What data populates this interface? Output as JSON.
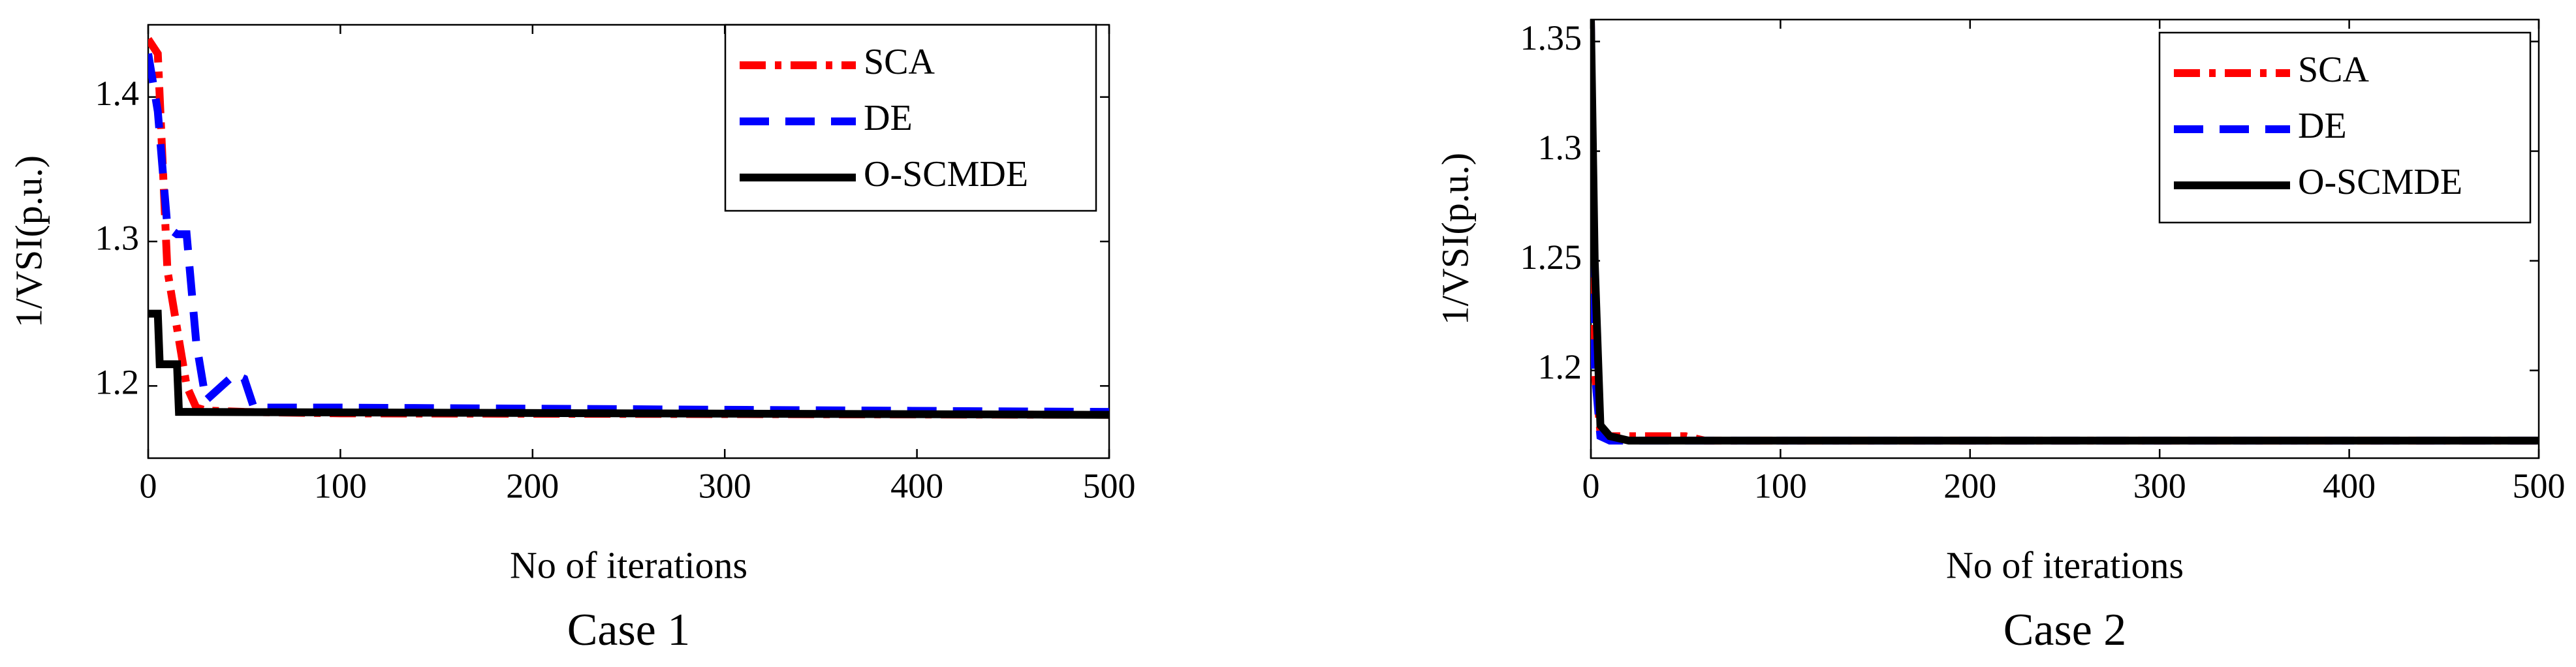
{
  "chart_data": [
    {
      "type": "line",
      "title": "Case 1",
      "xlabel": "No of iterations",
      "ylabel": "1/VSI(p.u.)",
      "xlim": [
        0,
        500
      ],
      "xticks": [
        0,
        100,
        200,
        300,
        400,
        500
      ],
      "ylim": [
        1.15,
        1.45
      ],
      "yticks": [
        1.2,
        1.3,
        1.4
      ],
      "legend": "upper right",
      "series": [
        {
          "name": "SCA",
          "color": "#ff0000",
          "style": "dashdot",
          "x": [
            0,
            5,
            10,
            15,
            20,
            25,
            30,
            50,
            100,
            500
          ],
          "values": [
            1.44,
            1.43,
            1.28,
            1.24,
            1.2,
            1.185,
            1.183,
            1.182,
            1.181,
            1.18
          ]
        },
        {
          "name": "DE",
          "color": "#0000ff",
          "style": "dashed",
          "x": [
            0,
            5,
            10,
            15,
            20,
            25,
            30,
            45,
            50,
            55,
            100,
            500
          ],
          "values": [
            1.43,
            1.39,
            1.31,
            1.305,
            1.305,
            1.23,
            1.19,
            1.208,
            1.205,
            1.185,
            1.185,
            1.182
          ]
        },
        {
          "name": "O-SCMDE",
          "color": "#000000",
          "style": "solid",
          "x": [
            0,
            5,
            6,
            15,
            16,
            20,
            500
          ],
          "values": [
            1.25,
            1.25,
            1.215,
            1.215,
            1.182,
            1.182,
            1.18
          ]
        }
      ]
    },
    {
      "type": "line",
      "title": "Case 2",
      "xlabel": "No of iterations",
      "ylabel": "1/VSI(p.u.)",
      "xlim": [
        0,
        500
      ],
      "xticks": [
        0,
        100,
        200,
        300,
        400,
        500
      ],
      "ylim": [
        1.16,
        1.36
      ],
      "yticks": [
        1.2,
        1.25,
        1.3,
        1.35
      ],
      "legend": "upper right",
      "series": [
        {
          "name": "SCA",
          "color": "#ff0000",
          "style": "dashdot",
          "x": [
            0,
            2,
            5,
            10,
            50,
            60,
            500
          ],
          "values": [
            1.36,
            1.2,
            1.172,
            1.17,
            1.17,
            1.168,
            1.168
          ]
        },
        {
          "name": "DE",
          "color": "#0000ff",
          "style": "dashed",
          "x": [
            0,
            2,
            5,
            10,
            250,
            500
          ],
          "values": [
            1.36,
            1.2,
            1.17,
            1.168,
            1.168,
            1.168
          ]
        },
        {
          "name": "O-SCMDE",
          "color": "#000000",
          "style": "solid",
          "x": [
            0,
            2,
            5,
            10,
            20,
            500
          ],
          "values": [
            1.36,
            1.25,
            1.175,
            1.17,
            1.168,
            1.168
          ]
        }
      ]
    }
  ]
}
